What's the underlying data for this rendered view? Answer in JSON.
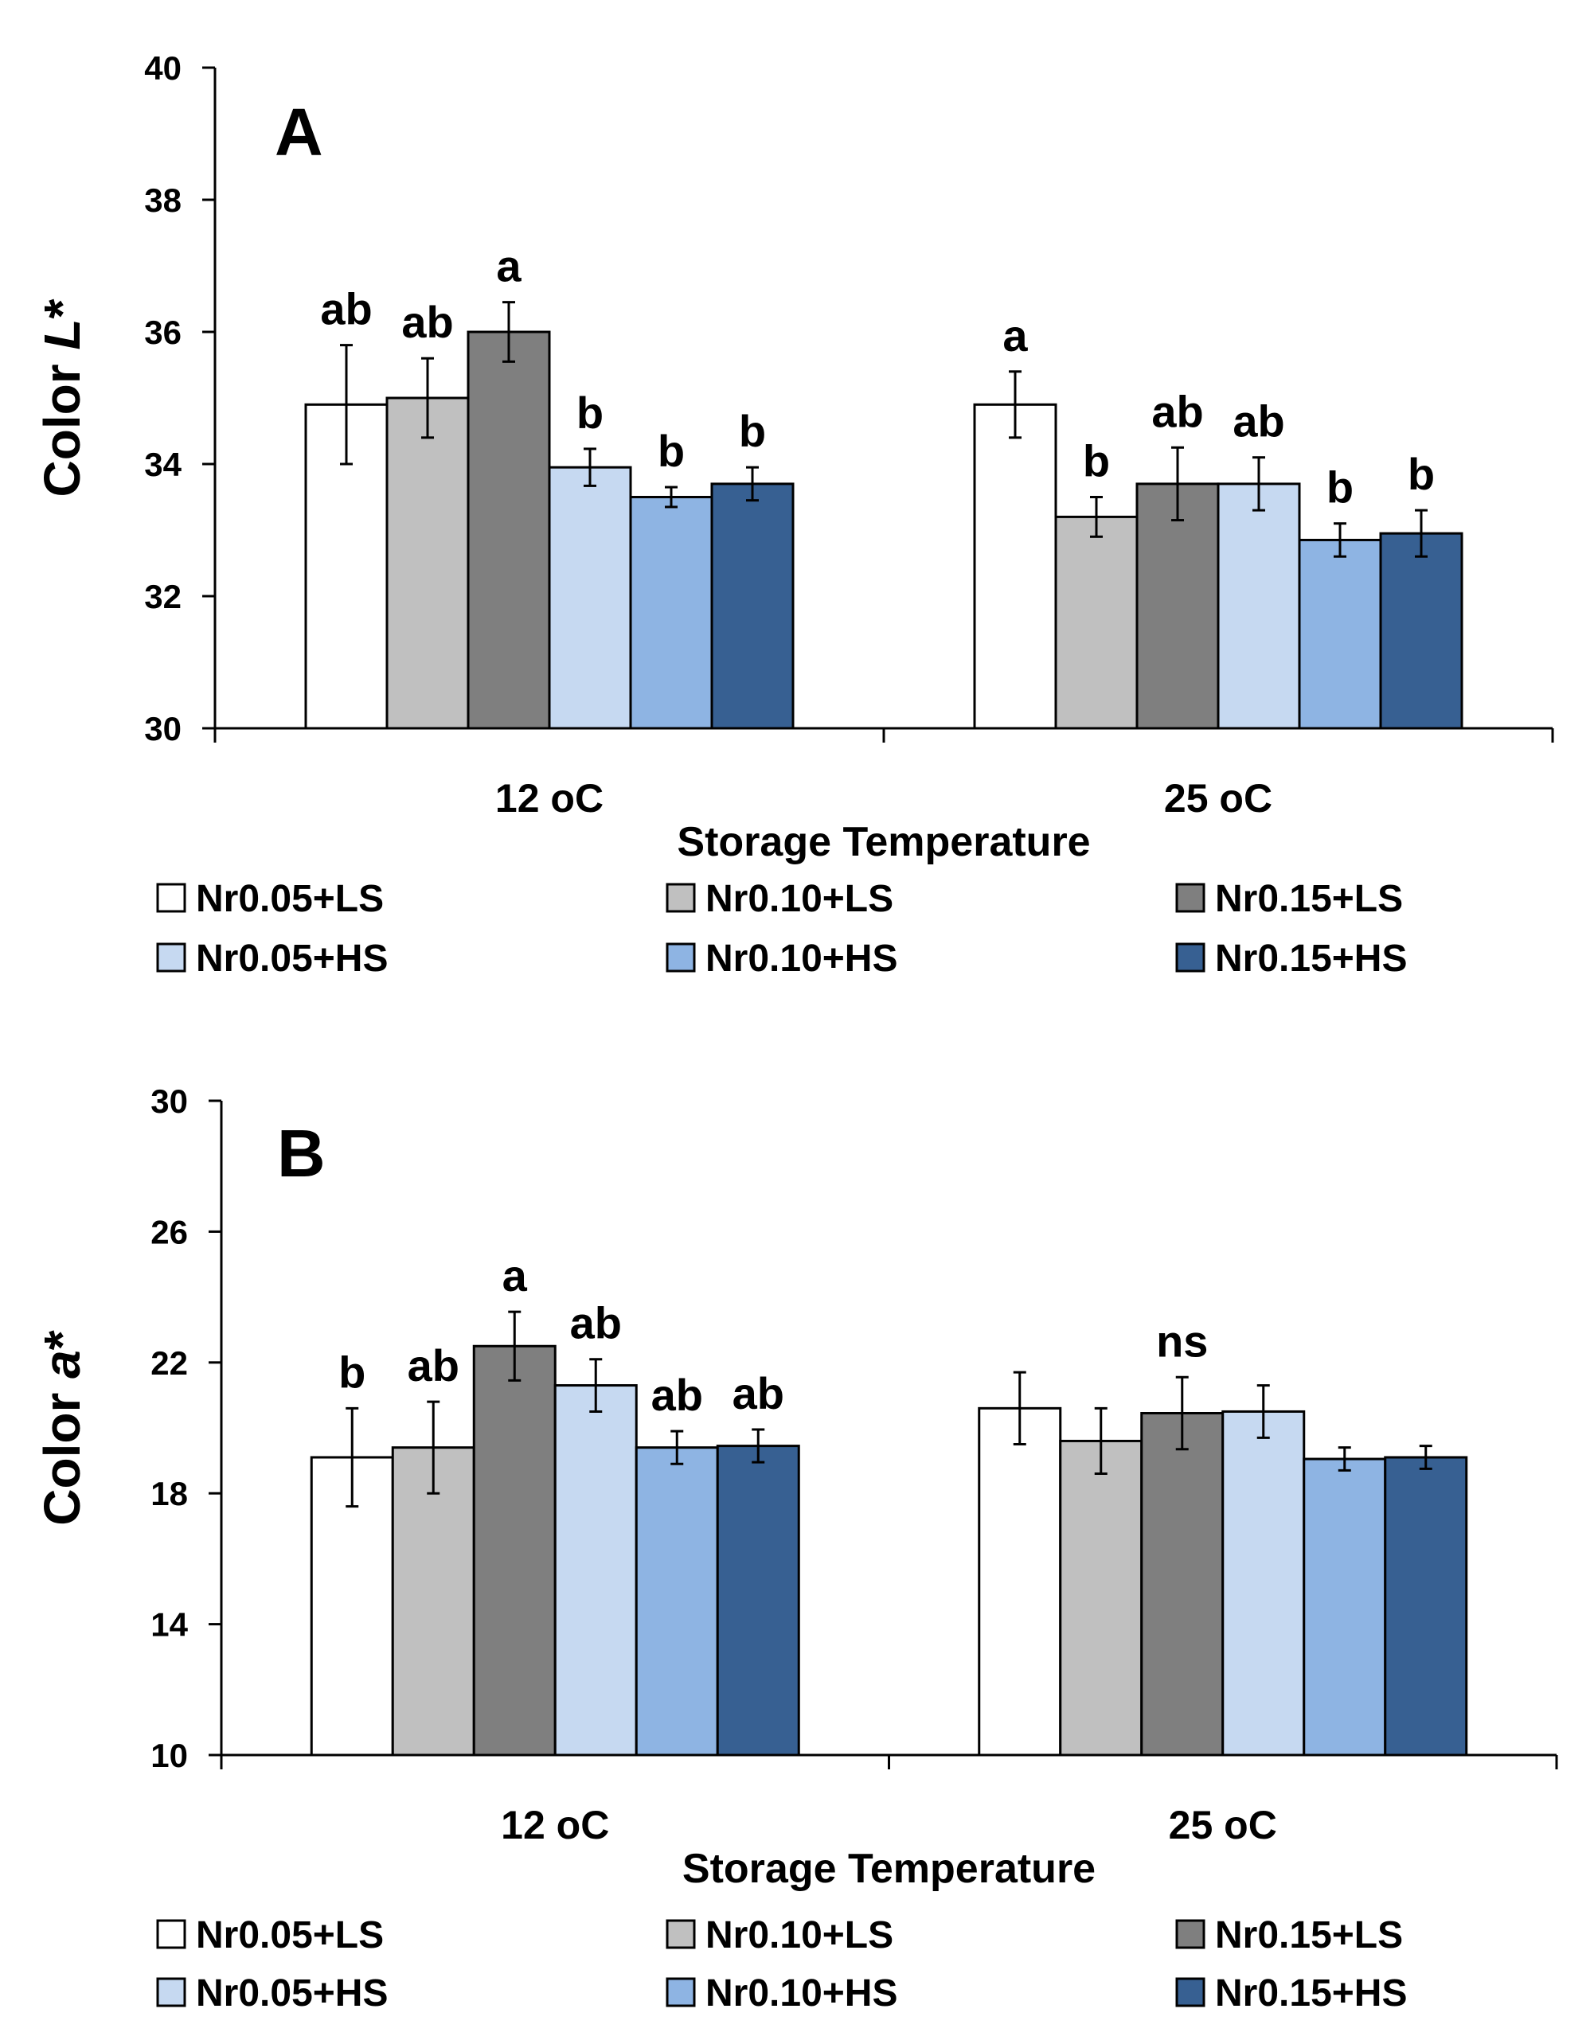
{
  "chart_data": [
    {
      "type": "bar",
      "panel_label": "A",
      "title": "",
      "ylabel_prefix": "Color ",
      "ylabel_italic": "L",
      "ylabel_suffix": "*",
      "xlabel": "Storage Temperature",
      "ylim": [
        30,
        40
      ],
      "yticks": [
        30,
        32,
        34,
        36,
        38,
        40
      ],
      "categories": [
        "12 oC",
        "25 oC"
      ],
      "series": [
        {
          "name": "Nr0.05+LS",
          "color": "#ffffff",
          "values": [
            34.9,
            34.9
          ],
          "errors": [
            0.9,
            0.5
          ],
          "letters": [
            "ab",
            "a"
          ]
        },
        {
          "name": "Nr0.10+LS",
          "color": "#c0c0c0",
          "values": [
            35.0,
            33.2
          ],
          "errors": [
            0.6,
            0.3
          ],
          "letters": [
            "ab",
            "b"
          ]
        },
        {
          "name": "Nr0.15+LS",
          "color": "#7f7f7f",
          "values": [
            36.0,
            33.7
          ],
          "errors": [
            0.45,
            0.55
          ],
          "letters": [
            "a",
            "ab"
          ]
        },
        {
          "name": "Nr0.05+HS",
          "color": "#c6d9f1",
          "values": [
            33.95,
            33.7
          ],
          "errors": [
            0.28,
            0.4
          ],
          "letters": [
            "b",
            "ab"
          ]
        },
        {
          "name": "Nr0.10+HS",
          "color": "#8eb4e3",
          "values": [
            33.5,
            32.85
          ],
          "errors": [
            0.15,
            0.25
          ],
          "letters": [
            "b",
            "b"
          ]
        },
        {
          "name": "Nr0.15+HS",
          "color": "#376092",
          "values": [
            33.7,
            32.95
          ],
          "errors": [
            0.25,
            0.35
          ],
          "letters": [
            "b",
            "b"
          ]
        }
      ],
      "legend": "bottom"
    },
    {
      "type": "bar",
      "panel_label": "B",
      "title": "",
      "ylabel_prefix": "Color ",
      "ylabel_italic": "a",
      "ylabel_suffix": "*",
      "xlabel": "Storage Temperature",
      "ylim": [
        10,
        30
      ],
      "yticks": [
        10,
        14,
        18,
        22,
        26,
        30
      ],
      "categories": [
        "12 oC",
        "25 oC"
      ],
      "series": [
        {
          "name": "Nr0.05+LS",
          "color": "#ffffff",
          "values": [
            19.1,
            20.6
          ],
          "errors": [
            1.5,
            1.1
          ],
          "letters": [
            "b",
            ""
          ]
        },
        {
          "name": "Nr0.10+LS",
          "color": "#c0c0c0",
          "values": [
            19.4,
            19.6
          ],
          "errors": [
            1.4,
            1.0
          ],
          "letters": [
            "ab",
            ""
          ]
        },
        {
          "name": "Nr0.15+LS",
          "color": "#7f7f7f",
          "values": [
            22.5,
            20.45
          ],
          "errors": [
            1.05,
            1.1
          ],
          "letters": [
            "a",
            "ns"
          ]
        },
        {
          "name": "Nr0.05+HS",
          "color": "#c6d9f1",
          "values": [
            21.3,
            20.5
          ],
          "errors": [
            0.8,
            0.8
          ],
          "letters": [
            "ab",
            ""
          ]
        },
        {
          "name": "Nr0.10+HS",
          "color": "#8eb4e3",
          "values": [
            19.4,
            19.05
          ],
          "errors": [
            0.5,
            0.35
          ],
          "letters": [
            "ab",
            ""
          ]
        },
        {
          "name": "Nr0.15+HS",
          "color": "#376092",
          "values": [
            19.45,
            19.1
          ],
          "errors": [
            0.5,
            0.35
          ],
          "letters": [
            "ab",
            ""
          ]
        }
      ],
      "legend": "bottom"
    }
  ]
}
